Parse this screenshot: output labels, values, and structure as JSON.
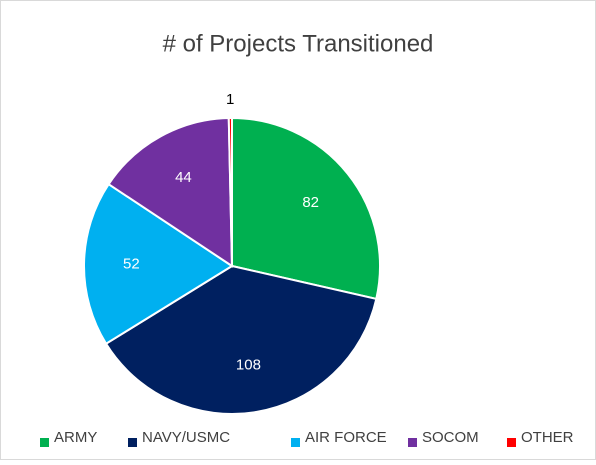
{
  "chart_data": {
    "type": "pie",
    "title": "# of Projects Transitioned",
    "categories": [
      "ARMY",
      "NAVY/USMC",
      "AIR FORCE",
      "SOCOM",
      "OTHER"
    ],
    "values": [
      82,
      108,
      52,
      44,
      1
    ],
    "colors": [
      "#00b050",
      "#002060",
      "#00b0f0",
      "#7030a0",
      "#ff0000"
    ],
    "legend": "bottom"
  }
}
